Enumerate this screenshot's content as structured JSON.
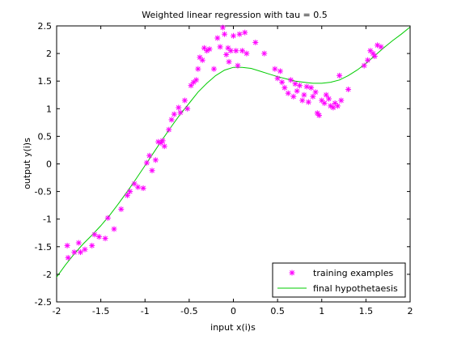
{
  "chart_data": {
    "type": "scatter",
    "title": "Weighted linear regression with tau = 0.5",
    "xlabel": "input x(i)s",
    "ylabel": "output y(i)s",
    "xlim": [
      -2,
      2
    ],
    "ylim": [
      -2.5,
      2.5
    ],
    "xticks": [
      -2,
      -1.5,
      -1,
      -0.5,
      0,
      0.5,
      1,
      1.5,
      2
    ],
    "yticks": [
      -2.5,
      -2,
      -1.5,
      -1,
      -0.5,
      0,
      0.5,
      1,
      1.5,
      2,
      2.5
    ],
    "xtick_labels": [
      "-2",
      "-1.5",
      "-1",
      "-0.5",
      "0",
      "0.5",
      "1",
      "1.5",
      "2"
    ],
    "ytick_labels": [
      "-2.5",
      "-2",
      "-1.5",
      "-1",
      "-0.5",
      "0",
      "0.5",
      "1",
      "1.5",
      "2",
      "2.5"
    ],
    "grid": false,
    "legend_position": "bottom-right",
    "series": [
      {
        "name": "training examples",
        "kind": "scatter",
        "marker": "asterisk",
        "color": "#ff00ff",
        "points": [
          [
            -1.88,
            -1.48
          ],
          [
            -1.87,
            -1.7
          ],
          [
            -1.8,
            -1.6
          ],
          [
            -1.75,
            -1.43
          ],
          [
            -1.73,
            -1.6
          ],
          [
            -1.68,
            -1.55
          ],
          [
            -1.6,
            -1.48
          ],
          [
            -1.57,
            -1.28
          ],
          [
            -1.52,
            -1.32
          ],
          [
            -1.45,
            -1.35
          ],
          [
            -1.42,
            -0.98
          ],
          [
            -1.35,
            -1.18
          ],
          [
            -1.27,
            -0.82
          ],
          [
            -1.2,
            -0.57
          ],
          [
            -1.17,
            -0.5
          ],
          [
            -1.12,
            -0.36
          ],
          [
            -1.08,
            -0.42
          ],
          [
            -1.02,
            -0.44
          ],
          [
            -0.98,
            0.02
          ],
          [
            -0.95,
            0.15
          ],
          [
            -0.92,
            -0.12
          ],
          [
            -0.88,
            0.07
          ],
          [
            -0.85,
            0.4
          ],
          [
            -0.82,
            0.38
          ],
          [
            -0.8,
            0.42
          ],
          [
            -0.78,
            0.32
          ],
          [
            -0.73,
            0.62
          ],
          [
            -0.7,
            0.8
          ],
          [
            -0.67,
            0.9
          ],
          [
            -0.62,
            1.02
          ],
          [
            -0.6,
            0.93
          ],
          [
            -0.55,
            1.15
          ],
          [
            -0.52,
            1.0
          ],
          [
            -0.48,
            1.42
          ],
          [
            -0.45,
            1.48
          ],
          [
            -0.42,
            1.52
          ],
          [
            -0.4,
            1.72
          ],
          [
            -0.38,
            1.93
          ],
          [
            -0.35,
            1.88
          ],
          [
            -0.33,
            2.1
          ],
          [
            -0.3,
            2.05
          ],
          [
            -0.27,
            2.08
          ],
          [
            -0.22,
            1.72
          ],
          [
            -0.18,
            2.28
          ],
          [
            -0.15,
            2.12
          ],
          [
            -0.12,
            2.47
          ],
          [
            -0.1,
            2.35
          ],
          [
            -0.08,
            1.98
          ],
          [
            -0.06,
            2.1
          ],
          [
            -0.05,
            1.85
          ],
          [
            -0.03,
            2.05
          ],
          [
            0.0,
            2.32
          ],
          [
            0.03,
            2.05
          ],
          [
            0.05,
            1.78
          ],
          [
            0.07,
            2.35
          ],
          [
            0.1,
            2.05
          ],
          [
            0.13,
            2.38
          ],
          [
            0.15,
            2.0
          ],
          [
            0.25,
            2.2
          ],
          [
            0.35,
            2.0
          ],
          [
            0.47,
            1.72
          ],
          [
            0.5,
            1.55
          ],
          [
            0.53,
            1.68
          ],
          [
            0.55,
            1.48
          ],
          [
            0.58,
            1.38
          ],
          [
            0.62,
            1.28
          ],
          [
            0.65,
            1.52
          ],
          [
            0.68,
            1.22
          ],
          [
            0.7,
            1.45
          ],
          [
            0.72,
            1.32
          ],
          [
            0.75,
            1.42
          ],
          [
            0.78,
            1.15
          ],
          [
            0.8,
            1.25
          ],
          [
            0.83,
            1.4
          ],
          [
            0.85,
            1.12
          ],
          [
            0.88,
            1.38
          ],
          [
            0.9,
            1.22
          ],
          [
            0.93,
            1.3
          ],
          [
            0.95,
            0.92
          ],
          [
            0.97,
            0.88
          ],
          [
            1.0,
            1.15
          ],
          [
            1.03,
            1.1
          ],
          [
            1.05,
            1.25
          ],
          [
            1.08,
            1.18
          ],
          [
            1.1,
            1.05
          ],
          [
            1.13,
            1.02
          ],
          [
            1.15,
            1.1
          ],
          [
            1.18,
            1.05
          ],
          [
            1.2,
            1.6
          ],
          [
            1.22,
            1.15
          ],
          [
            1.3,
            1.35
          ],
          [
            1.48,
            1.78
          ],
          [
            1.52,
            1.88
          ],
          [
            1.55,
            2.05
          ],
          [
            1.58,
            2.0
          ],
          [
            1.6,
            1.95
          ],
          [
            1.63,
            2.15
          ],
          [
            1.67,
            2.12
          ]
        ]
      },
      {
        "name": "final hypothetaesis",
        "kind": "line",
        "color": "#00cc00",
        "points": [
          [
            -2.0,
            -2.05
          ],
          [
            -1.9,
            -1.83
          ],
          [
            -1.8,
            -1.63
          ],
          [
            -1.7,
            -1.45
          ],
          [
            -1.6,
            -1.29
          ],
          [
            -1.5,
            -1.12
          ],
          [
            -1.4,
            -0.93
          ],
          [
            -1.3,
            -0.72
          ],
          [
            -1.2,
            -0.5
          ],
          [
            -1.1,
            -0.27
          ],
          [
            -1.0,
            -0.03
          ],
          [
            -0.9,
            0.21
          ],
          [
            -0.8,
            0.45
          ],
          [
            -0.7,
            0.68
          ],
          [
            -0.6,
            0.9
          ],
          [
            -0.5,
            1.1
          ],
          [
            -0.4,
            1.3
          ],
          [
            -0.3,
            1.46
          ],
          [
            -0.2,
            1.6
          ],
          [
            -0.1,
            1.7
          ],
          [
            0.0,
            1.75
          ],
          [
            0.1,
            1.75
          ],
          [
            0.2,
            1.73
          ],
          [
            0.3,
            1.68
          ],
          [
            0.4,
            1.63
          ],
          [
            0.5,
            1.58
          ],
          [
            0.6,
            1.54
          ],
          [
            0.7,
            1.5
          ],
          [
            0.8,
            1.48
          ],
          [
            0.9,
            1.46
          ],
          [
            1.0,
            1.46
          ],
          [
            1.1,
            1.48
          ],
          [
            1.2,
            1.52
          ],
          [
            1.3,
            1.6
          ],
          [
            1.4,
            1.7
          ],
          [
            1.5,
            1.82
          ],
          [
            1.6,
            1.96
          ],
          [
            1.7,
            2.1
          ],
          [
            1.8,
            2.23
          ],
          [
            1.9,
            2.35
          ],
          [
            2.0,
            2.48
          ]
        ]
      }
    ]
  }
}
